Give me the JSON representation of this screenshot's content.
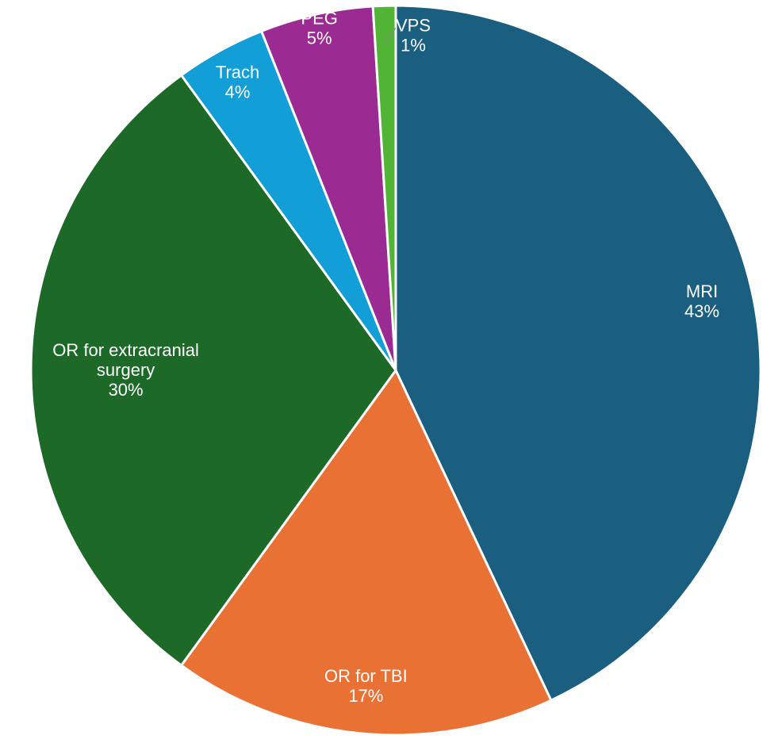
{
  "chart_data": {
    "type": "pie",
    "start_angle": "12 o'clock",
    "direction": "clockwise",
    "slices": [
      {
        "label": "MRI",
        "value": 43,
        "pct": "43%",
        "color": "#1a5e80"
      },
      {
        "label": "OR for TBI",
        "value": 17,
        "pct": "17%",
        "color": "#e87133"
      },
      {
        "label": "OR for extracranial surgery",
        "lines": [
          "OR for extracranial",
          "surgery"
        ],
        "value": 30,
        "pct": "30%",
        "color": "#1d6a28"
      },
      {
        "label": "Trach",
        "value": 4,
        "pct": "4%",
        "color": "#129ed6"
      },
      {
        "label": "PEG",
        "value": 5,
        "pct": "5%",
        "color": "#9b2a92"
      },
      {
        "label": "VPS",
        "value": 1,
        "pct": "1%",
        "color": "#52b434"
      }
    ]
  }
}
